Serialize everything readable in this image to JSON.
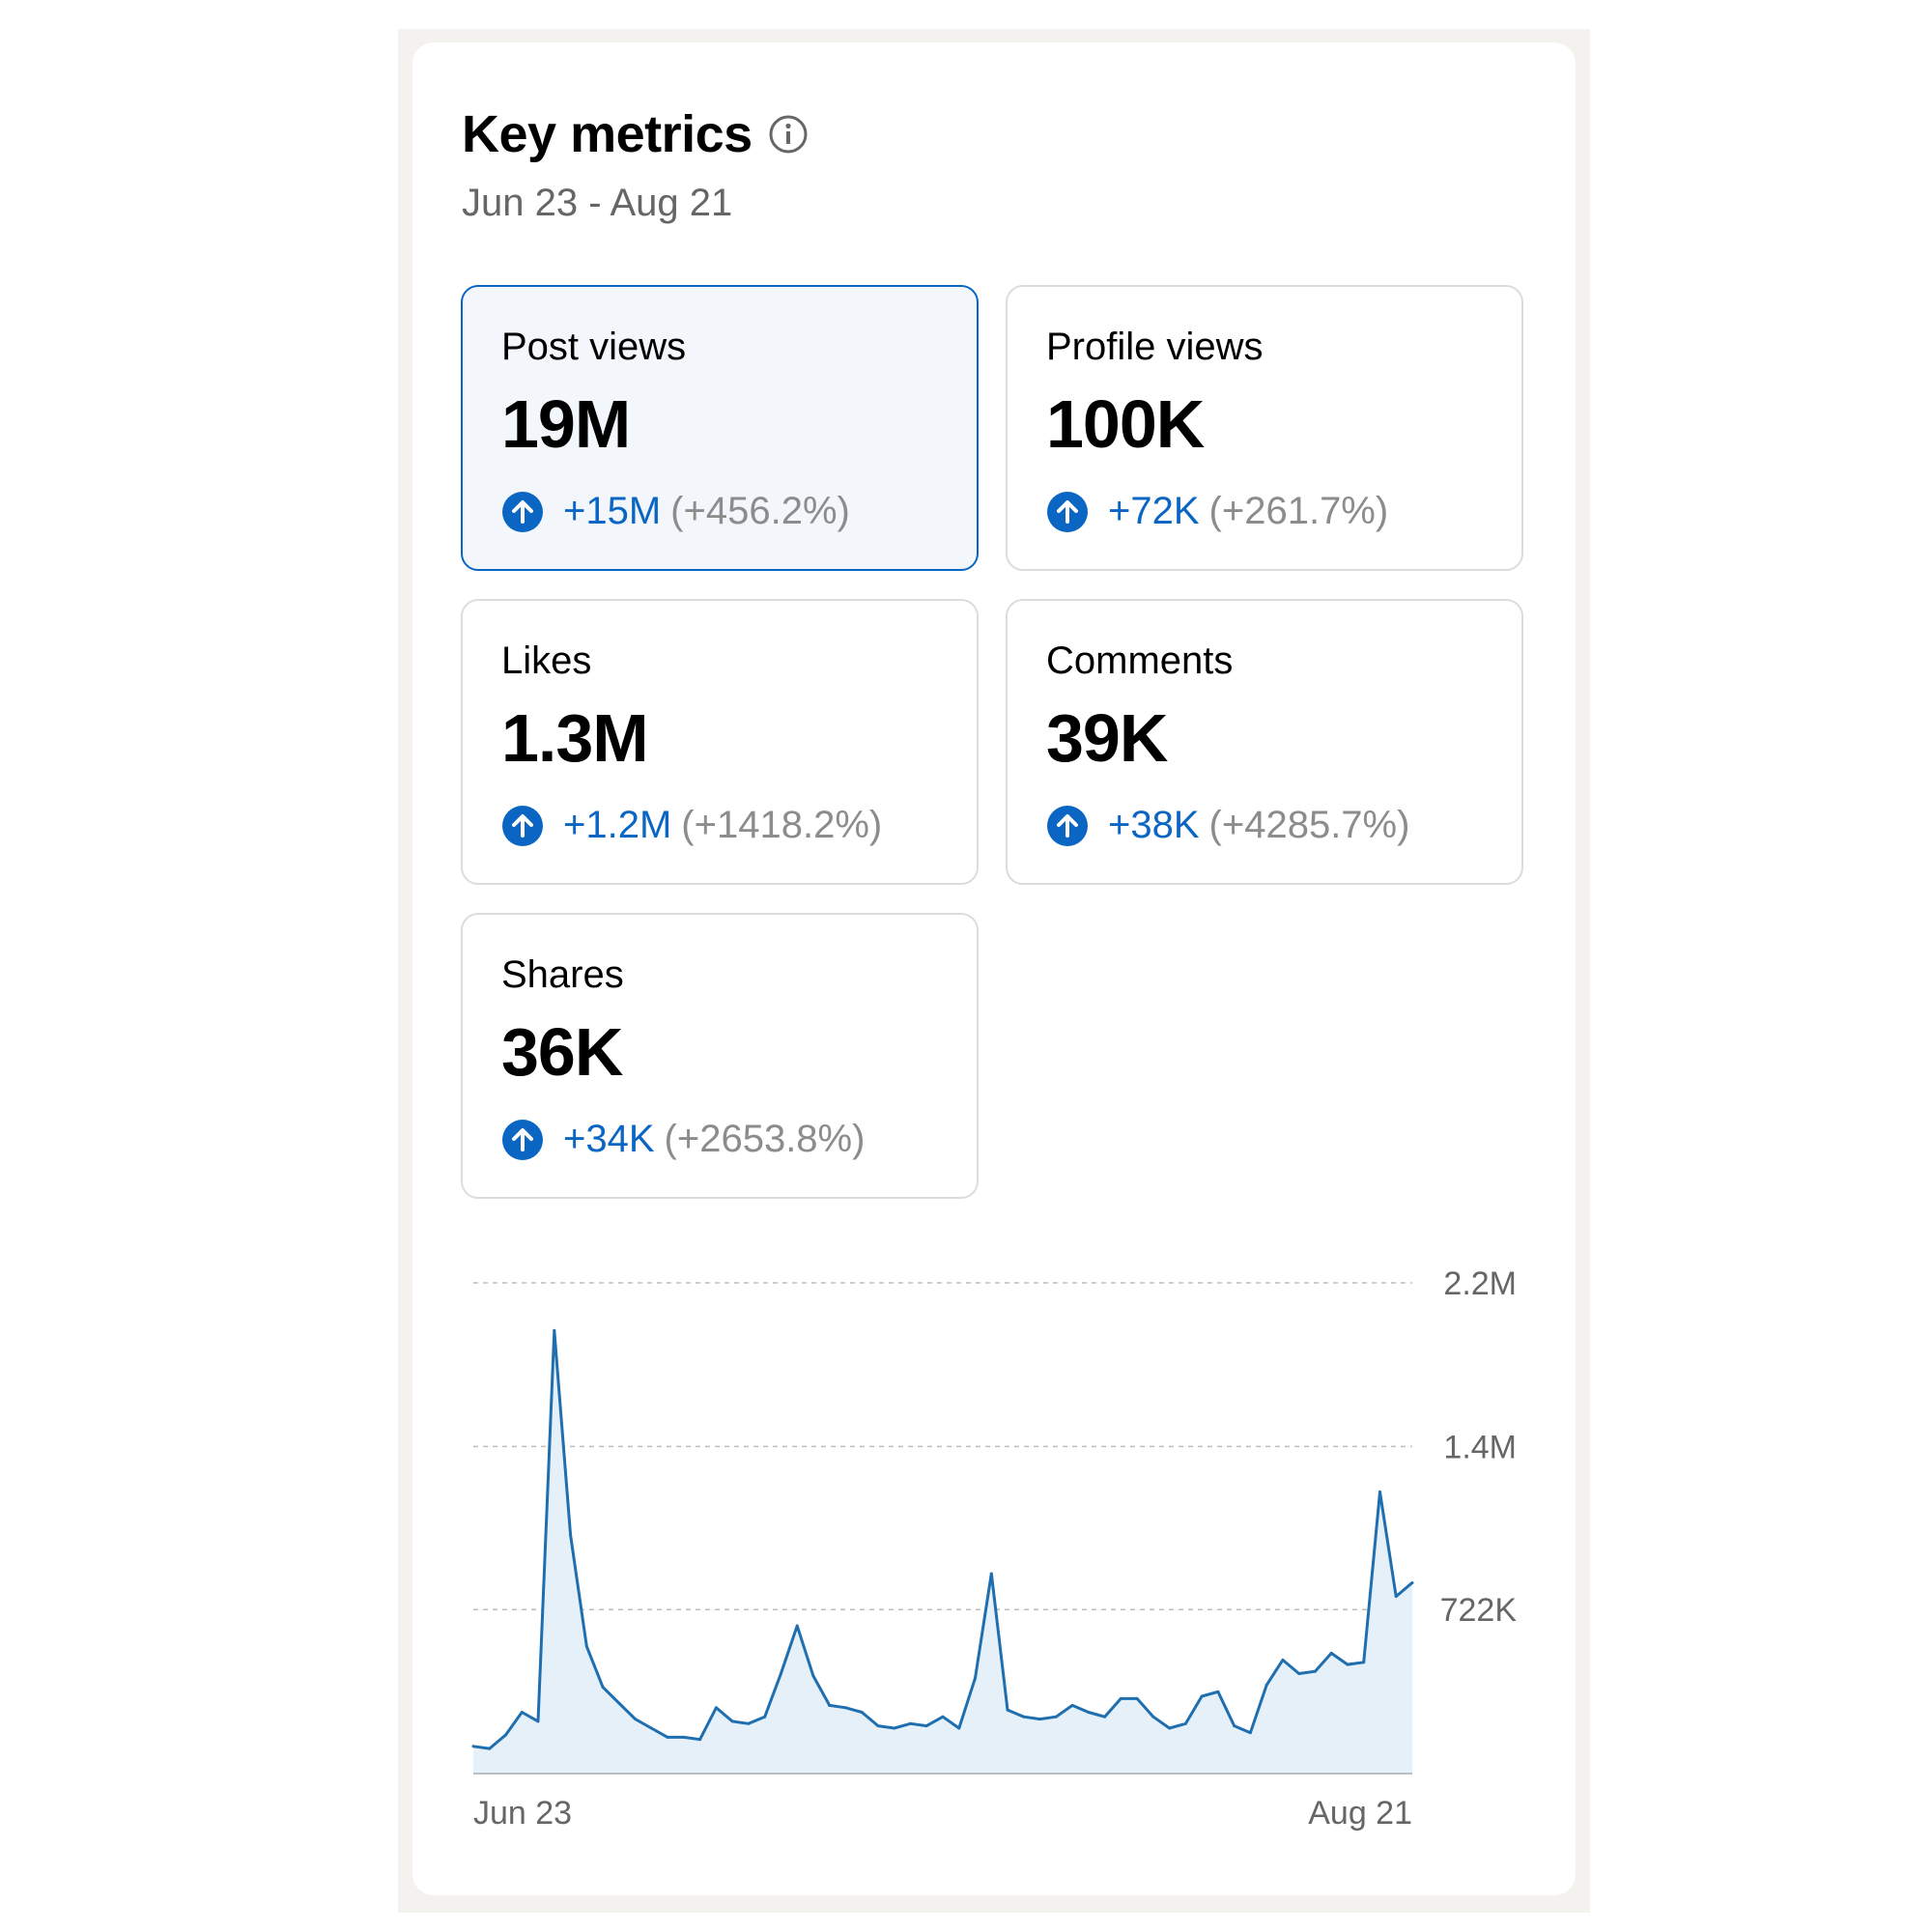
{
  "header": {
    "title": "Key metrics",
    "date_range": "Jun 23 - Aug 21",
    "info_icon": "info-circle-icon"
  },
  "metrics": [
    {
      "label": "Post views",
      "value": "19M",
      "change": "+15M",
      "percent": "(+456.2%)",
      "selected": true
    },
    {
      "label": "Profile views",
      "value": "100K",
      "change": "+72K",
      "percent": "(+261.7%)",
      "selected": false
    },
    {
      "label": "Likes",
      "value": "1.3M",
      "change": "+1.2M",
      "percent": "(+1418.2%)",
      "selected": false
    },
    {
      "label": "Comments",
      "value": "39K",
      "change": "+38K",
      "percent": "(+4285.7%)",
      "selected": false
    },
    {
      "label": "Shares",
      "value": "36K",
      "change": "+34K",
      "percent": "(+2653.8%)",
      "selected": false
    }
  ],
  "colors": {
    "accent": "#0a66c2",
    "line": "#1f6fb0",
    "fill": "#e6f0f9",
    "muted": "#8c8c8c",
    "grid": "#bdbdbd"
  },
  "chart_data": {
    "type": "area",
    "series": [
      {
        "values": [
          120000,
          110000,
          170000,
          270000,
          230000,
          1950000,
          1050000,
          560000,
          380000,
          310000,
          240000,
          200000,
          160000,
          160000,
          150000,
          290000,
          230000,
          220000,
          250000,
          440000,
          650000,
          430000,
          300000,
          290000,
          270000,
          210000,
          200000,
          220000,
          210000,
          250000,
          200000,
          420000,
          880000,
          280000,
          250000,
          240000,
          250000,
          300000,
          270000,
          250000,
          330000,
          330000,
          250000,
          200000,
          220000,
          340000,
          360000,
          210000,
          180000,
          390000,
          500000,
          440000,
          450000,
          530000,
          480000,
          490000,
          1240000,
          780000,
          840000
        ]
      }
    ],
    "xlabels": [
      "Jun 23",
      "Aug 21"
    ],
    "yticks": [
      "2.2M",
      "1.4M",
      "722K"
    ],
    "ytick_values": [
      2160000,
      1440000,
      722000
    ],
    "ylim": [
      0,
      2160000
    ],
    "grid": true
  }
}
